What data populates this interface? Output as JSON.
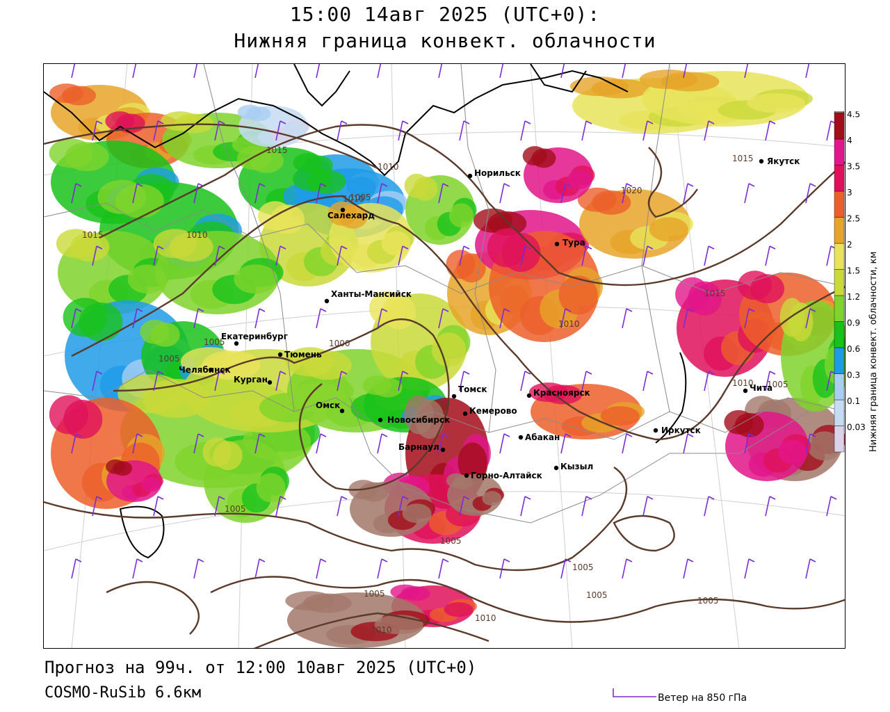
{
  "header": {
    "time_line": "15:00 14авг 2025 (UTC+0):",
    "field_title": "Нижняя граница конвект. облачности"
  },
  "footer": {
    "forecast_line": "Прогноз на 99ч. от 12:00 10авг 2025 (UTC+0)",
    "model_line": "COSMO-RuSib 6.6км",
    "wind_legend": "Ветер на 850 гПа"
  },
  "legend": {
    "title": "Нижняя граница конвект. облачности, км",
    "levels": [
      {
        "label": "0.03",
        "color": "#d9d2e9"
      },
      {
        "label": "0.1",
        "color": "#c6dcf2"
      },
      {
        "label": "0.3",
        "color": "#a9cef2"
      },
      {
        "label": "0.6",
        "color": "#1e9be8"
      },
      {
        "label": "0.9",
        "color": "#19c21a"
      },
      {
        "label": "1.2",
        "color": "#7fd42c"
      },
      {
        "label": "1.5",
        "color": "#c9d93a"
      },
      {
        "label": "2",
        "color": "#e8e35a"
      },
      {
        "label": "2.5",
        "color": "#e6a428"
      },
      {
        "label": "3",
        "color": "#ec5f2a"
      },
      {
        "label": "3.5",
        "color": "#e0115a"
      },
      {
        "label": "4",
        "color": "#e2158a"
      },
      {
        "label": "4.5",
        "color": "#a30c1a"
      },
      {
        "label": "",
        "color": "#a2786a"
      }
    ]
  },
  "colors": {
    "isobar": "#5a3a2a",
    "wind_barb": "#7a2bd6",
    "coast": "#000000",
    "border": "#999999"
  },
  "cities": [
    {
      "name": "Якутск"
    },
    {
      "name": "Норильск"
    },
    {
      "name": "Салехард"
    },
    {
      "name": "Тура"
    },
    {
      "name": "Ханты-Мансийск"
    },
    {
      "name": "Екатеринбург"
    },
    {
      "name": "Тюмень"
    },
    {
      "name": "Челябинск"
    },
    {
      "name": "Курган"
    },
    {
      "name": "Омск"
    },
    {
      "name": "Новосибирск"
    },
    {
      "name": "Томск"
    },
    {
      "name": "Кемерово"
    },
    {
      "name": "Красноярск"
    },
    {
      "name": "Абакан"
    },
    {
      "name": "Барнаул"
    },
    {
      "name": "Горно-Алтайск"
    },
    {
      "name": "Кызыл"
    },
    {
      "name": "Иркутск"
    },
    {
      "name": "Чита"
    }
  ],
  "isobar_labels": [
    "1015",
    "1010",
    "1010",
    "1005",
    "1015",
    "1020",
    "1015",
    "1015",
    "1010",
    "1010",
    "1005",
    "1000",
    "1005",
    "1005",
    "1005",
    "1010",
    "1005",
    "1005",
    "1005",
    "1005",
    "1010",
    "1005",
    "1010"
  ]
}
